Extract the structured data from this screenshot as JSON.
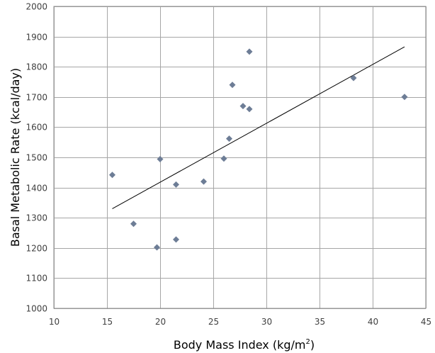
{
  "chart_data": {
    "type": "scatter",
    "title": "",
    "xlabel": "Body Mass Index (kg/m",
    "xlabel_superscript": "2",
    "xlabel_suffix": ")",
    "ylabel": "Basal Metabolic Rate (kcal/day)",
    "xlim": [
      10,
      45
    ],
    "ylim": [
      1000,
      2000
    ],
    "x_ticks": [
      "10",
      "15",
      "20",
      "25",
      "30",
      "35",
      "40",
      "45"
    ],
    "y_ticks": [
      "1000",
      "1100",
      "1200",
      "1300",
      "1400",
      "1500",
      "1600",
      "1700",
      "1800",
      "1900",
      "2000"
    ],
    "grid": true,
    "legend": "none",
    "marker": "diamond",
    "marker_color": "#6d7d96",
    "series": [
      {
        "points": [
          {
            "x": 15.5,
            "y": 1442
          },
          {
            "x": 17.5,
            "y": 1280
          },
          {
            "x": 19.7,
            "y": 1202
          },
          {
            "x": 20.0,
            "y": 1494
          },
          {
            "x": 21.5,
            "y": 1410
          },
          {
            "x": 21.5,
            "y": 1228
          },
          {
            "x": 24.1,
            "y": 1420
          },
          {
            "x": 26.0,
            "y": 1496
          },
          {
            "x": 26.5,
            "y": 1562
          },
          {
            "x": 26.8,
            "y": 1740
          },
          {
            "x": 27.8,
            "y": 1670
          },
          {
            "x": 28.4,
            "y": 1660
          },
          {
            "x": 28.4,
            "y": 1850
          },
          {
            "x": 38.2,
            "y": 1763
          },
          {
            "x": 43.0,
            "y": 1700
          }
        ]
      }
    ],
    "trendline": {
      "type": "linear",
      "x_start": 15.5,
      "y_start": 1330,
      "x_end": 43.0,
      "y_end": 1866
    }
  }
}
